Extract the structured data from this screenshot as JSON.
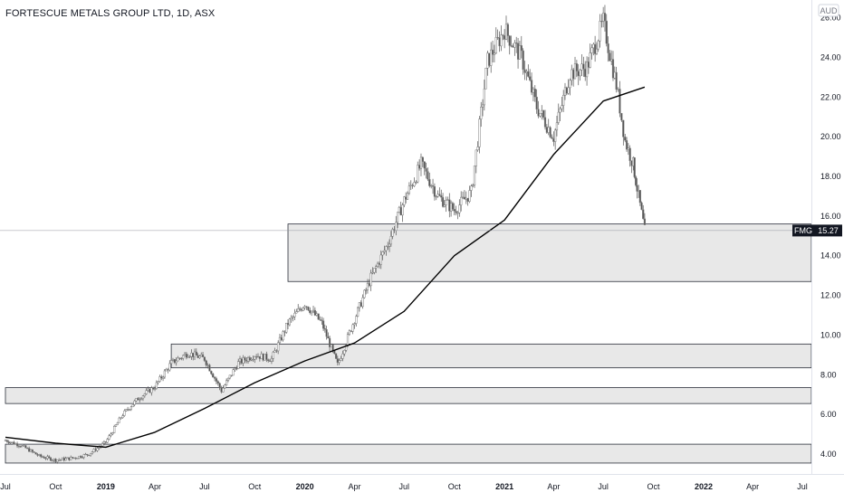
{
  "chart_data": {
    "type": "candlestick",
    "title": "FORTESCUE METALS GROUP LTD, 1D, ASX",
    "symbol": "FMG",
    "currency": "AUD",
    "last_price": "15.27",
    "ylim": [
      3.0,
      26.8
    ],
    "y_ticks": [
      "4.00",
      "6.00",
      "8.00",
      "10.00",
      "12.00",
      "14.00",
      "16.00",
      "18.00",
      "20.00",
      "22.00",
      "24.00",
      "26.00"
    ],
    "x_range": [
      "2018-07-01",
      "2022-07-31"
    ],
    "x_ticks": [
      {
        "label": "Jul",
        "date": "2018-07-01",
        "year": false
      },
      {
        "label": "Oct",
        "date": "2018-10-01",
        "year": false
      },
      {
        "label": "2019",
        "date": "2019-01-01",
        "year": true
      },
      {
        "label": "Apr",
        "date": "2019-04-01",
        "year": false
      },
      {
        "label": "Jul",
        "date": "2019-07-01",
        "year": false
      },
      {
        "label": "Oct",
        "date": "2019-10-01",
        "year": false
      },
      {
        "label": "2020",
        "date": "2020-01-01",
        "year": true
      },
      {
        "label": "Apr",
        "date": "2020-04-01",
        "year": false
      },
      {
        "label": "Jul",
        "date": "2020-07-01",
        "year": false
      },
      {
        "label": "Oct",
        "date": "2020-10-01",
        "year": false
      },
      {
        "label": "2021",
        "date": "2021-01-01",
        "year": true
      },
      {
        "label": "Apr",
        "date": "2021-04-01",
        "year": false
      },
      {
        "label": "Jul",
        "date": "2021-07-01",
        "year": false
      },
      {
        "label": "Oct",
        "date": "2021-10-01",
        "year": false
      },
      {
        "label": "2022",
        "date": "2022-01-01",
        "year": true
      },
      {
        "label": "Apr",
        "date": "2022-04-01",
        "year": false
      },
      {
        "label": "Jul",
        "date": "2022-07-01",
        "year": false
      }
    ],
    "price_series": [
      {
        "date": "2018-07-01",
        "close": 4.7
      },
      {
        "date": "2018-08-01",
        "close": 4.4
      },
      {
        "date": "2018-09-01",
        "close": 3.9
      },
      {
        "date": "2018-10-01",
        "close": 3.7
      },
      {
        "date": "2018-11-01",
        "close": 3.8
      },
      {
        "date": "2018-12-01",
        "close": 4.0
      },
      {
        "date": "2019-01-01",
        "close": 4.6
      },
      {
        "date": "2019-02-01",
        "close": 6.0
      },
      {
        "date": "2019-03-01",
        "close": 6.8
      },
      {
        "date": "2019-04-01",
        "close": 7.4
      },
      {
        "date": "2019-05-01",
        "close": 8.6
      },
      {
        "date": "2019-06-01",
        "close": 9.1
      },
      {
        "date": "2019-07-01",
        "close": 8.8
      },
      {
        "date": "2019-08-01",
        "close": 7.2
      },
      {
        "date": "2019-09-01",
        "close": 8.6
      },
      {
        "date": "2019-10-01",
        "close": 9.0
      },
      {
        "date": "2019-11-01",
        "close": 8.8
      },
      {
        "date": "2019-12-01",
        "close": 10.6
      },
      {
        "date": "2020-01-01",
        "close": 11.6
      },
      {
        "date": "2020-02-01",
        "close": 10.6
      },
      {
        "date": "2020-03-01",
        "close": 8.5
      },
      {
        "date": "2020-04-01",
        "close": 10.8
      },
      {
        "date": "2020-05-01",
        "close": 12.9
      },
      {
        "date": "2020-06-01",
        "close": 14.6
      },
      {
        "date": "2020-07-01",
        "close": 16.8
      },
      {
        "date": "2020-08-01",
        "close": 18.6
      },
      {
        "date": "2020-09-01",
        "close": 17.0
      },
      {
        "date": "2020-10-01",
        "close": 16.3
      },
      {
        "date": "2020-11-01",
        "close": 17.2
      },
      {
        "date": "2020-12-01",
        "close": 23.8
      },
      {
        "date": "2021-01-01",
        "close": 25.4
      },
      {
        "date": "2021-02-01",
        "close": 24.0
      },
      {
        "date": "2021-03-01",
        "close": 21.5
      },
      {
        "date": "2021-04-01",
        "close": 20.0
      },
      {
        "date": "2021-05-01",
        "close": 23.2
      },
      {
        "date": "2021-06-01",
        "close": 23.5
      },
      {
        "date": "2021-07-01",
        "close": 25.8
      },
      {
        "date": "2021-07-25",
        "close": 22.6
      },
      {
        "date": "2021-08-10",
        "close": 19.8
      },
      {
        "date": "2021-08-25",
        "close": 18.6
      },
      {
        "date": "2021-09-01",
        "close": 17.4
      },
      {
        "date": "2021-09-15",
        "close": 15.27
      }
    ],
    "moving_average": [
      {
        "date": "2018-07-01",
        "value": 4.85
      },
      {
        "date": "2018-10-01",
        "value": 4.55
      },
      {
        "date": "2019-01-01",
        "value": 4.35
      },
      {
        "date": "2019-04-01",
        "value": 5.1
      },
      {
        "date": "2019-07-01",
        "value": 6.3
      },
      {
        "date": "2019-10-01",
        "value": 7.6
      },
      {
        "date": "2020-01-01",
        "value": 8.7
      },
      {
        "date": "2020-04-01",
        "value": 9.6
      },
      {
        "date": "2020-07-01",
        "value": 11.2
      },
      {
        "date": "2020-10-01",
        "value": 14.0
      },
      {
        "date": "2021-01-01",
        "value": 15.8
      },
      {
        "date": "2021-04-01",
        "value": 19.1
      },
      {
        "date": "2021-07-01",
        "value": 21.8
      },
      {
        "date": "2021-09-15",
        "value": 22.5
      }
    ],
    "zones": [
      {
        "low": 12.7,
        "high": 15.6,
        "start": "2019-12-01"
      },
      {
        "low": 8.35,
        "high": 9.55,
        "start": "2019-05-01"
      },
      {
        "low": 6.55,
        "high": 7.35,
        "start": "2018-07-01"
      },
      {
        "low": 3.55,
        "high": 4.5,
        "start": "2018-07-01"
      }
    ],
    "grid": false,
    "legend": "none"
  }
}
